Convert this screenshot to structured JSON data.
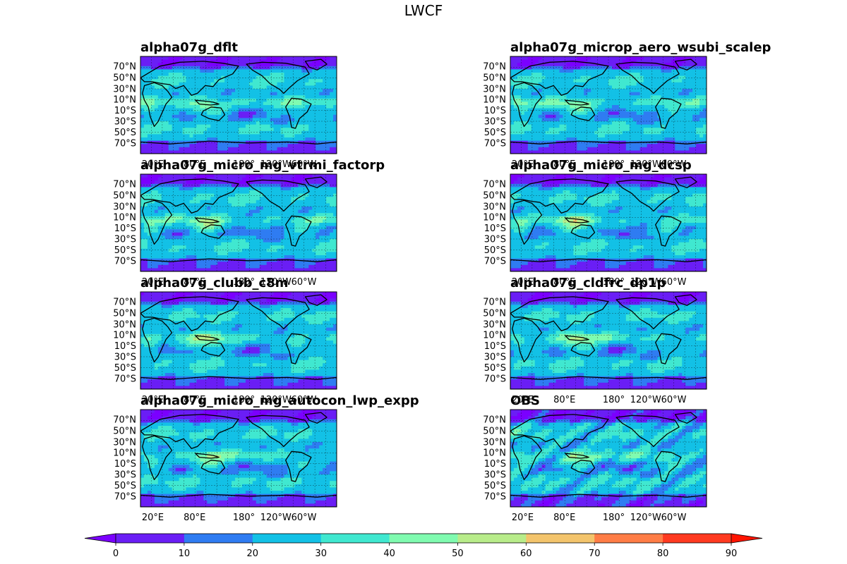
{
  "chart_data": {
    "type": "filled-contour-map",
    "title": "LWCF",
    "lat_ticks": [
      "70°N",
      "50°N",
      "30°N",
      "10°N",
      "10°S",
      "30°S",
      "50°S",
      "70°S"
    ],
    "lon_ticks": [
      "20°E",
      "80°E",
      "180°",
      "120°W",
      "60°W"
    ],
    "panels": [
      {
        "name": "alpha07g_dflt"
      },
      {
        "name": "alpha07g_microp_aero_wsubi_scalep"
      },
      {
        "name": "alpha07g_micro_mg_vtrmi_factorp"
      },
      {
        "name": "alpha07g_micro_mg_dcsp"
      },
      {
        "name": "alpha07g_clubb_c8m"
      },
      {
        "name": "alpha07g_cldfrc_dp1p"
      },
      {
        "name": "alpha07g_micro_mg_autocon_lwp_expp"
      },
      {
        "name": "OBS"
      }
    ],
    "colorbar": {
      "levels": [
        0,
        10,
        20,
        30,
        40,
        50,
        60,
        70,
        80,
        90
      ],
      "colors": [
        "#6a1ef5",
        "#2f7cf2",
        "#13c1e6",
        "#40e8d0",
        "#80fbb0",
        "#b8ec8a",
        "#f3c46c",
        "#ff7d46",
        "#ff3a20"
      ],
      "under_color": "#7b00ff",
      "over_color": "#ff1400",
      "extend": "both"
    }
  }
}
